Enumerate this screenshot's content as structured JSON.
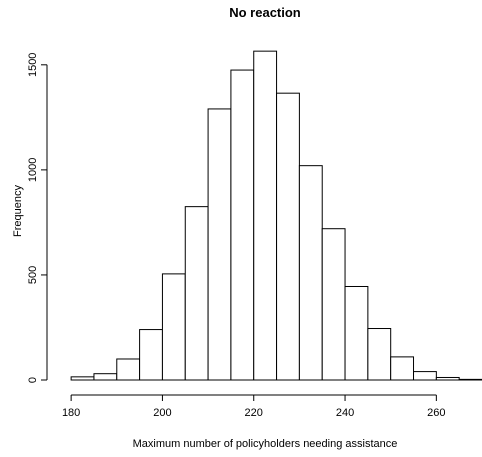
{
  "chart_data": {
    "type": "bar",
    "title": "No reaction",
    "xlabel": "Maximum number of policyholders needing assistance",
    "ylabel": "Frequency",
    "bin_edges": [
      180,
      185,
      190,
      195,
      200,
      205,
      210,
      215,
      220,
      225,
      230,
      235,
      240,
      245,
      250,
      255,
      260,
      265,
      270
    ],
    "values": [
      15,
      30,
      100,
      240,
      505,
      825,
      1290,
      1475,
      1565,
      1365,
      1020,
      720,
      445,
      245,
      110,
      40,
      12,
      3
    ],
    "x_ticks": [
      "180",
      "200",
      "220",
      "240",
      "260"
    ],
    "y_ticks": [
      "0",
      "500",
      "1000",
      "1500"
    ],
    "xlim": [
      178,
      270
    ],
    "ylim": [
      0,
      1580
    ],
    "grid": false,
    "legend": "none"
  }
}
